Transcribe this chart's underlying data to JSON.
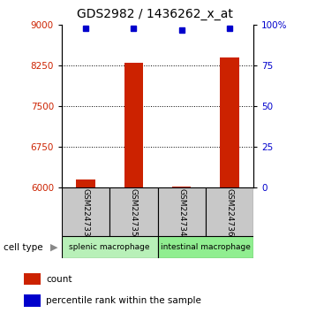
{
  "title": "GDS2982 / 1436262_x_at",
  "samples": [
    "GSM224733",
    "GSM224735",
    "GSM224734",
    "GSM224736"
  ],
  "bar_values": [
    6150,
    8300,
    6020,
    8400
  ],
  "percentile_values": [
    98,
    98,
    97,
    98
  ],
  "ylim_left": [
    6000,
    9000
  ],
  "ylim_right": [
    0,
    100
  ],
  "yticks_left": [
    6000,
    6750,
    7500,
    8250,
    9000
  ],
  "yticks_right": [
    0,
    25,
    50,
    75,
    100
  ],
  "ytick_labels_right": [
    "0",
    "25",
    "50",
    "75",
    "100%"
  ],
  "bar_color": "#cc2200",
  "percentile_color": "#0000cc",
  "bar_width": 0.4,
  "dotted_lines": [
    6750,
    7500,
    8250
  ],
  "title_fontsize": 10,
  "axis_color_left": "#cc2200",
  "axis_color_right": "#0000cc",
  "sample_box_color": "#c8c8c8",
  "group_colors": [
    "#b8f0b8",
    "#90ee90"
  ],
  "group_labels": [
    "splenic macrophage",
    "intestinal macrophage"
  ],
  "group_sample_ranges": [
    [
      0,
      1
    ],
    [
      2,
      3
    ]
  ],
  "cell_type_label": "cell type",
  "legend_labels": [
    "count",
    "percentile rank within the sample"
  ],
  "legend_colors": [
    "#cc2200",
    "#0000cc"
  ]
}
